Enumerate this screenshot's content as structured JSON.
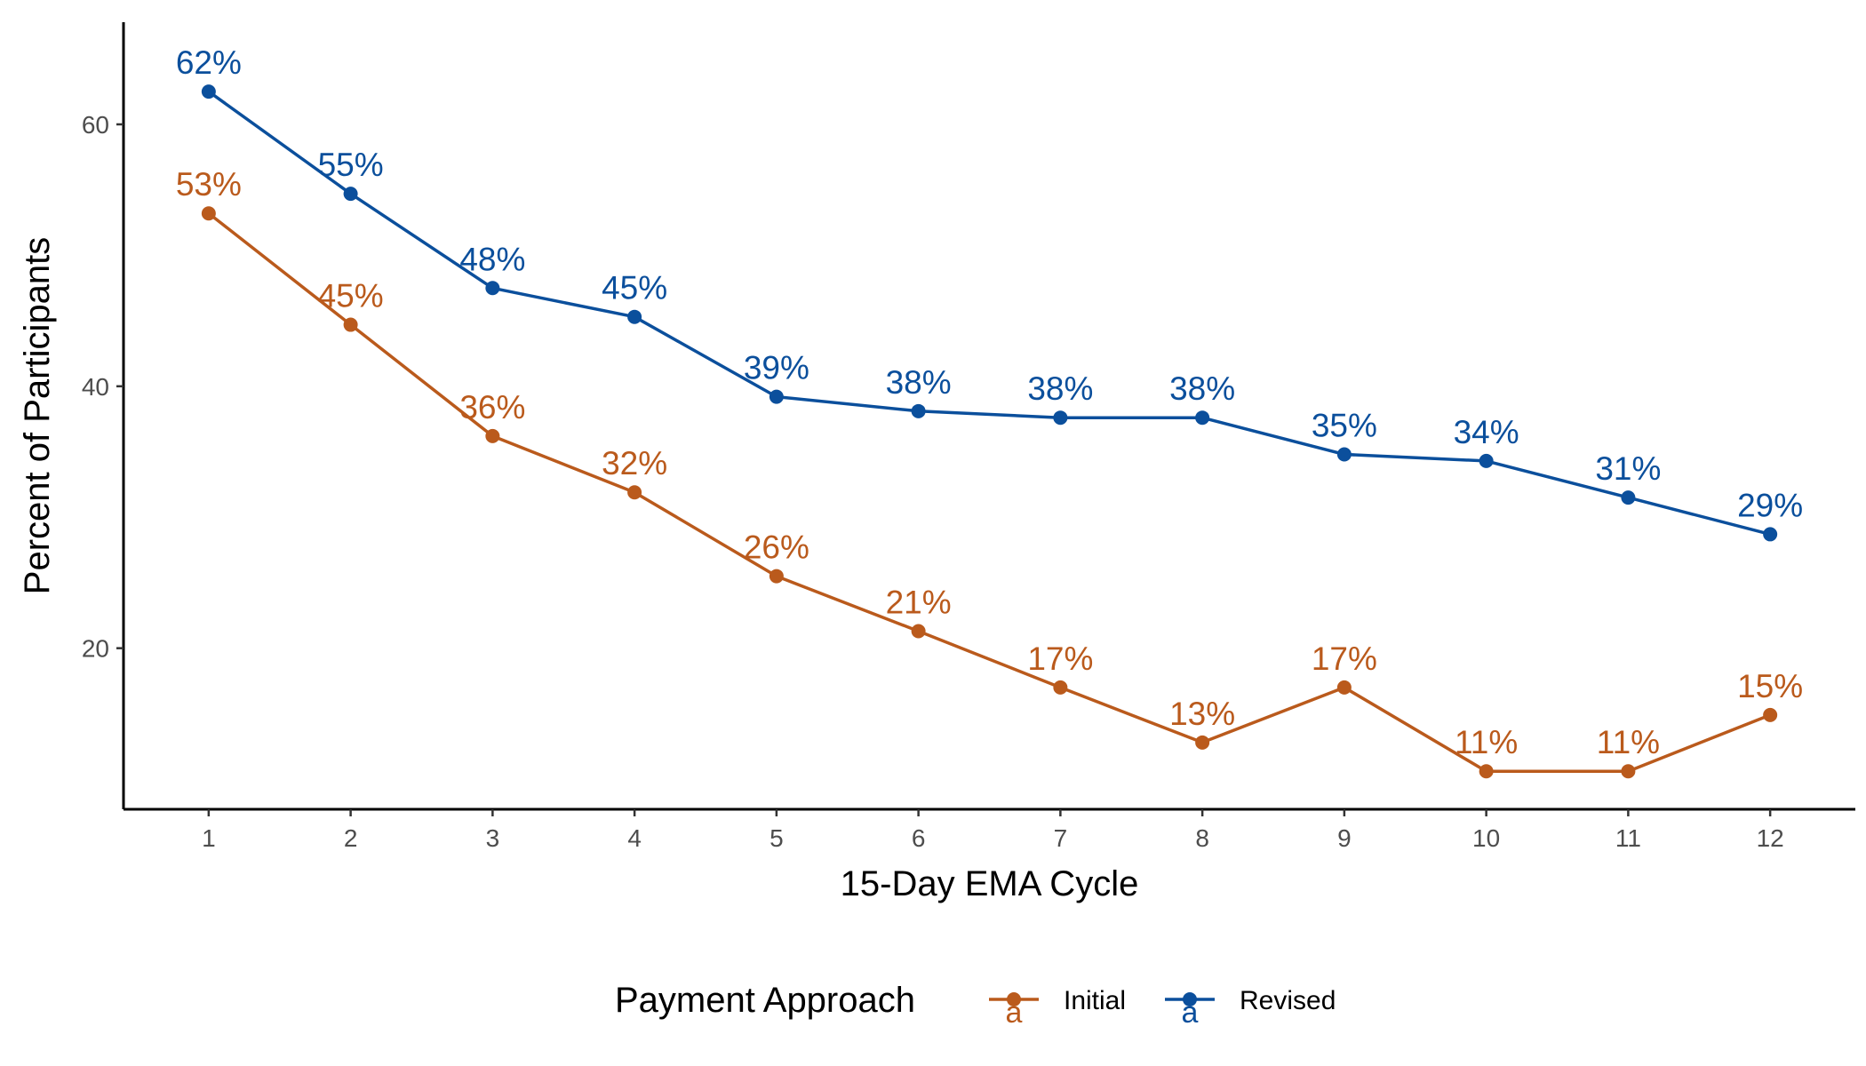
{
  "chart_data": {
    "type": "line",
    "xlabel": "15-Day EMA Cycle",
    "ylabel": "Percent of Participants",
    "x": [
      1,
      2,
      3,
      4,
      5,
      6,
      7,
      8,
      9,
      10,
      11,
      12
    ],
    "xlim": [
      0.4,
      12.6
    ],
    "ylim": [
      7.7,
      67.8
    ],
    "yticks": [
      20,
      40,
      60
    ],
    "grid": false,
    "legend": {
      "title": "Payment Approach",
      "placement": "bottom",
      "glyph": "a"
    },
    "series": [
      {
        "name": "Initial",
        "color": "#BA5A1C",
        "values": [
          53.2,
          44.7,
          36.2,
          31.9,
          25.5,
          21.3,
          17.0,
          12.8,
          17.0,
          10.6,
          10.6,
          14.9
        ],
        "labels": [
          "53%",
          "45%",
          "36%",
          "32%",
          "26%",
          "21%",
          "17%",
          "13%",
          "17%",
          "11%",
          "11%",
          "15%"
        ]
      },
      {
        "name": "Revised",
        "color": "#0B4F9C",
        "values": [
          62.5,
          54.7,
          47.5,
          45.3,
          39.2,
          38.1,
          37.6,
          37.6,
          34.8,
          34.3,
          31.5,
          28.7
        ],
        "labels": [
          "62%",
          "55%",
          "48%",
          "45%",
          "39%",
          "38%",
          "38%",
          "38%",
          "35%",
          "34%",
          "31%",
          "29%"
        ]
      }
    ]
  }
}
